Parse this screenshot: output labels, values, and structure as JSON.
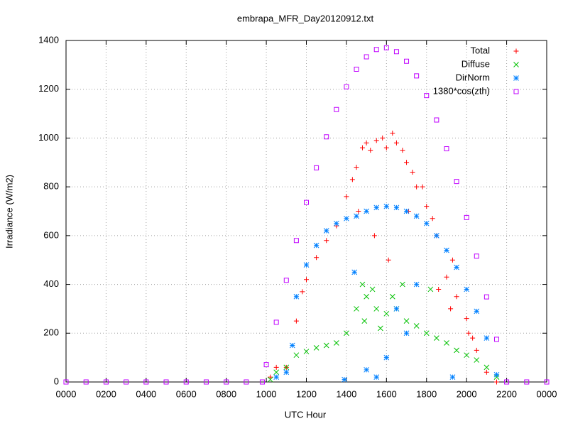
{
  "chart_data": {
    "type": "scatter",
    "title": "embrapa_MFR_Day20120912.txt",
    "x_label": "UTC Hour",
    "y_label": "Irradiance (W/m2)",
    "xlim": [
      0,
      24
    ],
    "ylim": [
      0,
      1400
    ],
    "xticks": [
      {
        "value": 0,
        "label": "0000"
      },
      {
        "value": 2,
        "label": "0200"
      },
      {
        "value": 4,
        "label": "0400"
      },
      {
        "value": 6,
        "label": "0600"
      },
      {
        "value": 8,
        "label": "0800"
      },
      {
        "value": 10,
        "label": "1000"
      },
      {
        "value": 12,
        "label": "1200"
      },
      {
        "value": 14,
        "label": "1400"
      },
      {
        "value": 16,
        "label": "1600"
      },
      {
        "value": 18,
        "label": "1800"
      },
      {
        "value": 20,
        "label": "2000"
      },
      {
        "value": 22,
        "label": "2200"
      },
      {
        "value": 24,
        "label": "0000"
      }
    ],
    "yticks": [
      0,
      200,
      400,
      600,
      800,
      1000,
      1200,
      1400
    ],
    "grid": true,
    "legend": "top-right",
    "series": [
      {
        "name": "Total",
        "color": "#ff0000",
        "marker": "plus",
        "x": [
          10.2,
          10.5,
          11,
          11.5,
          11.8,
          12,
          12.5,
          13,
          13.5,
          14,
          14.3,
          14.5,
          14.8,
          15,
          15.2,
          15.5,
          15.8,
          16,
          16.3,
          16.5,
          16.8,
          17,
          17.3,
          17.5,
          17.8,
          18,
          18.3,
          18.5,
          19,
          19.3,
          19.5,
          20,
          20.3,
          20.5,
          21,
          21.5,
          14.6,
          15.4,
          16.1,
          17.1,
          18.6,
          19.2,
          20.1
        ],
        "values": [
          20,
          60,
          60,
          250,
          370,
          420,
          510,
          580,
          640,
          760,
          830,
          880,
          960,
          980,
          950,
          990,
          1000,
          960,
          1020,
          980,
          950,
          900,
          860,
          800,
          800,
          720,
          670,
          600,
          430,
          500,
          350,
          260,
          180,
          130,
          40,
          0,
          700,
          600,
          500,
          700,
          380,
          300,
          200
        ]
      },
      {
        "name": "Diffuse",
        "color": "#00c000",
        "marker": "cross",
        "x": [
          10.2,
          10.5,
          11,
          11.5,
          12,
          12.5,
          13,
          13.5,
          14,
          14.5,
          14.8,
          15,
          15.3,
          15.5,
          16,
          16.3,
          16.5,
          17,
          17.5,
          18,
          18.5,
          19,
          19.5,
          20,
          20.5,
          21,
          21.5,
          14.9,
          15.7,
          16.8,
          18.2
        ],
        "values": [
          10,
          40,
          60,
          110,
          125,
          140,
          150,
          160,
          200,
          300,
          400,
          350,
          380,
          300,
          280,
          350,
          300,
          250,
          230,
          200,
          180,
          160,
          130,
          110,
          90,
          60,
          20,
          250,
          220,
          400,
          380
        ]
      },
      {
        "name": "DirNorm",
        "color": "#0080ff",
        "marker": "star",
        "x": [
          10.5,
          11,
          11.3,
          11.5,
          12,
          12.5,
          13,
          13.5,
          14,
          14.5,
          15,
          15.5,
          16,
          16.5,
          17,
          17.5,
          18,
          18.5,
          19,
          19.5,
          20,
          20.5,
          21,
          21.5,
          14.4,
          15,
          15.5,
          16,
          16.5,
          17,
          17.5,
          19.3,
          13.9
        ],
        "values": [
          20,
          40,
          150,
          350,
          480,
          560,
          620,
          650,
          670,
          680,
          700,
          715,
          720,
          715,
          700,
          680,
          650,
          600,
          540,
          470,
          380,
          290,
          180,
          30,
          450,
          50,
          20,
          100,
          300,
          200,
          400,
          20,
          10
        ]
      },
      {
        "name": "1380*cos(zth)",
        "color": "#c000ff",
        "marker": "square",
        "x": [
          0,
          1,
          2,
          3,
          4,
          5,
          6,
          7,
          8,
          9,
          9.8,
          10,
          10.5,
          11,
          11.5,
          12,
          12.5,
          13,
          13.5,
          14,
          14.5,
          15,
          15.5,
          16,
          16.5,
          17,
          17.5,
          18,
          18.5,
          19,
          19.5,
          20,
          20.5,
          21,
          21.5,
          22,
          23,
          24
        ],
        "values": [
          0,
          0,
          0,
          0,
          0,
          0,
          0,
          0,
          0,
          0,
          0,
          71,
          245,
          417,
          580,
          736,
          878,
          1005,
          1117,
          1210,
          1282,
          1333,
          1363,
          1370,
          1354,
          1315,
          1255,
          1174,
          1074,
          956,
          822,
          674,
          516,
          349,
          175,
          0,
          0,
          0
        ]
      }
    ]
  }
}
